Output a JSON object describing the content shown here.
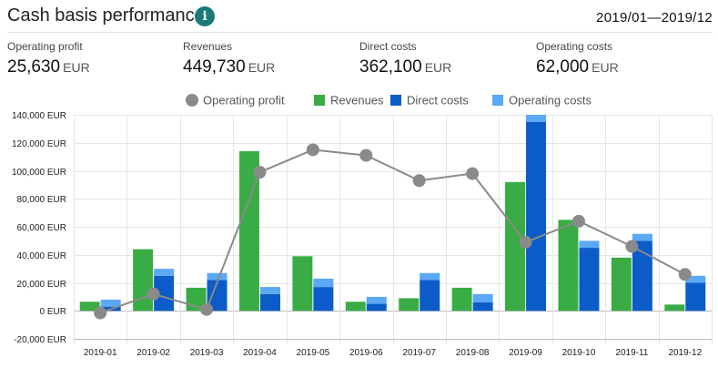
{
  "header": {
    "title": "Cash basis performance",
    "period": "2019/01—2019/12",
    "info_icon": "info-icon"
  },
  "kpis": [
    {
      "label": "Operating profit",
      "value": "25,630",
      "unit": "EUR"
    },
    {
      "label": "Revenues",
      "value": "449,730",
      "unit": "EUR"
    },
    {
      "label": "Direct costs",
      "value": "362,100",
      "unit": "EUR"
    },
    {
      "label": "Operating costs",
      "value": "62,000",
      "unit": "EUR"
    }
  ],
  "chart_data": {
    "type": "bar",
    "categories": [
      "2019-01",
      "2019-02",
      "2019-03",
      "2019-04",
      "2019-05",
      "2019-06",
      "2019-07",
      "2019-08",
      "2019-09",
      "2019-10",
      "2019-11",
      "2019-12"
    ],
    "ylim": [
      -20000,
      140000
    ],
    "yticks": [
      "140,000 EUR",
      "120,000 EUR",
      "100,000 EUR",
      "80,000 EUR",
      "60,000 EUR",
      "40,000 EUR",
      "20,000 EUR",
      "0 EUR",
      "-20,000 EUR"
    ],
    "ytick_values": [
      140000,
      120000,
      100000,
      80000,
      60000,
      40000,
      20000,
      0,
      -20000
    ],
    "legend_position": "top",
    "grid": true,
    "series": [
      {
        "name": "Operating profit",
        "type": "line",
        "color": "#8a8a8a",
        "values": [
          -1500,
          12000,
          1000,
          99000,
          115000,
          111000,
          93000,
          98000,
          49000,
          64000,
          46000,
          26000
        ]
      },
      {
        "name": "Revenues",
        "type": "bar",
        "color": "#3aac45",
        "values": [
          6500,
          44000,
          16500,
          114000,
          39000,
          6500,
          9000,
          16500,
          92000,
          65000,
          38000,
          4500
        ]
      },
      {
        "name": "Direct costs",
        "type": "stacked-bar",
        "color": "#0b5cc9",
        "values": [
          3000,
          25000,
          22000,
          12000,
          17000,
          5000,
          22000,
          6000,
          135000,
          45000,
          50000,
          20000
        ]
      },
      {
        "name": "Operating costs",
        "type": "stacked-bar",
        "color": "#5ba8f5",
        "values": [
          5000,
          5000,
          5000,
          5000,
          6000,
          5000,
          5000,
          6000,
          5000,
          5000,
          5000,
          5000
        ]
      }
    ]
  }
}
